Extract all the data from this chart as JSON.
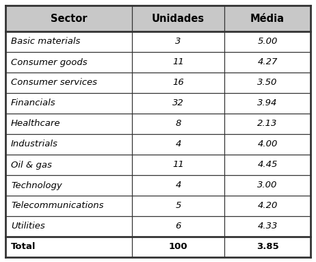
{
  "headers": [
    "Sector",
    "Unidades",
    "Média"
  ],
  "rows": [
    [
      "Basic materials",
      "3",
      "5.00"
    ],
    [
      "Consumer goods",
      "11",
      "4.27"
    ],
    [
      "Consumer services",
      "16",
      "3.50"
    ],
    [
      "Financials",
      "32",
      "3.94"
    ],
    [
      "Healthcare",
      "8",
      "2.13"
    ],
    [
      "Industrials",
      "4",
      "4.00"
    ],
    [
      "Oil & gas",
      "11",
      "4.45"
    ],
    [
      "Technology",
      "4",
      "3.00"
    ],
    [
      "Telecommunications",
      "5",
      "4.20"
    ],
    [
      "Utilities",
      "6",
      "4.33"
    ]
  ],
  "total_row": [
    "Total",
    "100",
    "3.85"
  ],
  "fig_width": 4.62,
  "fig_height": 3.83,
  "dpi": 100,
  "header_fontsize": 10.5,
  "body_fontsize": 9.5,
  "line_color": "#333333",
  "bg_color": "#ffffff",
  "header_bg": "#c8c8c8"
}
